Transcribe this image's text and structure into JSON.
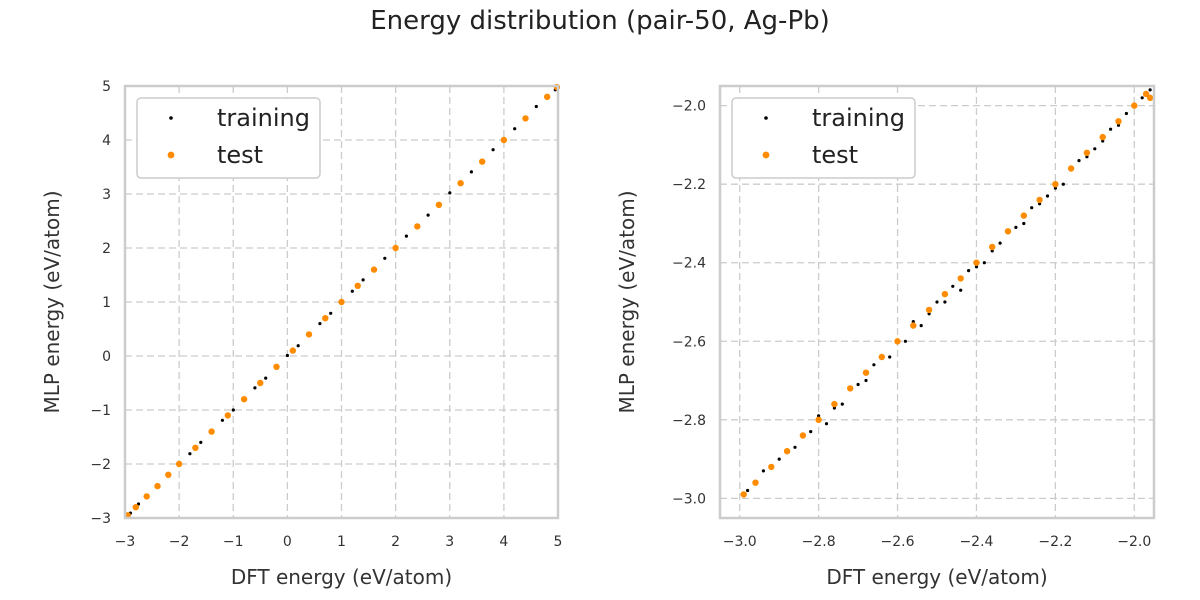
{
  "figure": {
    "title": "Energy distribution (pair-50, Ag-Pb)"
  },
  "colors": {
    "training": "#000000",
    "test": "#ff8c00",
    "grid": "#cccccc",
    "frame": "#cccccc"
  },
  "chart_data": [
    {
      "type": "scatter",
      "title": "",
      "xlabel": "DFT energy (eV/atom)",
      "ylabel": "MLP energy (eV/atom)",
      "xlim": [
        -3,
        5
      ],
      "ylim": [
        -3,
        5
      ],
      "xticks": [
        -3,
        -2,
        -1,
        0,
        1,
        2,
        3,
        4,
        5
      ],
      "yticks": [
        -3,
        -2,
        -1,
        0,
        1,
        2,
        3,
        4,
        5
      ],
      "xtick_labels": [
        "−3",
        "−2",
        "−1",
        "0",
        "1",
        "2",
        "3",
        "4",
        "5"
      ],
      "ytick_labels": [
        "−3",
        "−2",
        "−1",
        "0",
        "1",
        "2",
        "3",
        "4",
        "5"
      ],
      "grid": true,
      "legend": {
        "placement": "top-left",
        "entries": [
          "training",
          "test"
        ]
      },
      "series": [
        {
          "name": "training",
          "color": "#000000",
          "points": [
            [
              -2.98,
              -2.97
            ],
            [
              -2.9,
              -2.91
            ],
            [
              -2.75,
              -2.74
            ],
            [
              -2.6,
              -2.62
            ],
            [
              -2.4,
              -2.39
            ],
            [
              -2.2,
              -2.21
            ],
            [
              -2.0,
              -1.99
            ],
            [
              -1.8,
              -1.81
            ],
            [
              -1.6,
              -1.6
            ],
            [
              -1.4,
              -1.41
            ],
            [
              -1.2,
              -1.19
            ],
            [
              -1.0,
              -1.0
            ],
            [
              -0.8,
              -0.81
            ],
            [
              -0.6,
              -0.59
            ],
            [
              -0.4,
              -0.41
            ],
            [
              -0.2,
              -0.2
            ],
            [
              0.0,
              0.01
            ],
            [
              0.2,
              0.19
            ],
            [
              0.4,
              0.41
            ],
            [
              0.6,
              0.6
            ],
            [
              0.8,
              0.79
            ],
            [
              1.0,
              1.01
            ],
            [
              1.2,
              1.2
            ],
            [
              1.4,
              1.41
            ],
            [
              1.6,
              1.59
            ],
            [
              1.8,
              1.81
            ],
            [
              2.0,
              2.0
            ],
            [
              2.2,
              2.22
            ],
            [
              2.4,
              2.38
            ],
            [
              2.6,
              2.61
            ],
            [
              2.8,
              2.79
            ],
            [
              3.0,
              3.02
            ],
            [
              3.2,
              3.18
            ],
            [
              3.4,
              3.41
            ],
            [
              3.6,
              3.59
            ],
            [
              3.8,
              3.82
            ],
            [
              4.0,
              3.98
            ],
            [
              4.2,
              4.21
            ],
            [
              4.4,
              4.39
            ],
            [
              4.6,
              4.62
            ],
            [
              4.8,
              4.78
            ],
            [
              4.95,
              4.93
            ]
          ]
        },
        {
          "name": "test",
          "color": "#ff8c00",
          "points": [
            [
              -2.95,
              -2.95
            ],
            [
              -2.8,
              -2.8
            ],
            [
              -2.6,
              -2.6
            ],
            [
              -2.4,
              -2.41
            ],
            [
              -2.2,
              -2.2
            ],
            [
              -2.0,
              -2.0
            ],
            [
              -1.7,
              -1.7
            ],
            [
              -1.4,
              -1.4
            ],
            [
              -1.1,
              -1.1
            ],
            [
              -0.8,
              -0.8
            ],
            [
              -0.5,
              -0.5
            ],
            [
              -0.2,
              -0.2
            ],
            [
              0.1,
              0.1
            ],
            [
              0.4,
              0.4
            ],
            [
              0.7,
              0.7
            ],
            [
              1.0,
              1.0
            ],
            [
              1.3,
              1.3
            ],
            [
              1.6,
              1.6
            ],
            [
              2.0,
              2.0
            ],
            [
              2.4,
              2.4
            ],
            [
              2.8,
              2.8
            ],
            [
              3.2,
              3.2
            ],
            [
              3.6,
              3.6
            ],
            [
              4.0,
              4.0
            ],
            [
              4.4,
              4.4
            ],
            [
              4.8,
              4.8
            ],
            [
              4.98,
              4.98
            ]
          ]
        }
      ]
    },
    {
      "type": "scatter",
      "title": "",
      "xlabel": "DFT energy (eV/atom)",
      "ylabel": "MLP energy (eV/atom)",
      "xlim": [
        -3.05,
        -1.95
      ],
      "ylim": [
        -3.05,
        -1.95
      ],
      "xticks": [
        -3.0,
        -2.8,
        -2.6,
        -2.4,
        -2.2,
        -2.0
      ],
      "yticks": [
        -3.0,
        -2.8,
        -2.6,
        -2.4,
        -2.2,
        -2.0
      ],
      "xtick_labels": [
        "−3.0",
        "−2.8",
        "−2.6",
        "−2.4",
        "−2.2",
        "−2.0"
      ],
      "ytick_labels": [
        "−3.0",
        "−2.8",
        "−2.6",
        "−2.4",
        "−2.2",
        "−2.0"
      ],
      "grid": true,
      "legend": {
        "placement": "top-left",
        "entries": [
          "training",
          "test"
        ]
      },
      "series": [
        {
          "name": "training",
          "color": "#000000",
          "points": [
            [
              -2.98,
              -2.98
            ],
            [
              -2.94,
              -2.93
            ],
            [
              -2.9,
              -2.9
            ],
            [
              -2.86,
              -2.87
            ],
            [
              -2.82,
              -2.83
            ],
            [
              -2.8,
              -2.79
            ],
            [
              -2.78,
              -2.81
            ],
            [
              -2.76,
              -2.77
            ],
            [
              -2.74,
              -2.76
            ],
            [
              -2.72,
              -2.72
            ],
            [
              -2.7,
              -2.71
            ],
            [
              -2.68,
              -2.7
            ],
            [
              -2.66,
              -2.66
            ],
            [
              -2.64,
              -2.64
            ],
            [
              -2.62,
              -2.64
            ],
            [
              -2.6,
              -2.6
            ],
            [
              -2.58,
              -2.6
            ],
            [
              -2.56,
              -2.55
            ],
            [
              -2.54,
              -2.56
            ],
            [
              -2.52,
              -2.53
            ],
            [
              -2.5,
              -2.5
            ],
            [
              -2.48,
              -2.5
            ],
            [
              -2.46,
              -2.46
            ],
            [
              -2.44,
              -2.47
            ],
            [
              -2.42,
              -2.42
            ],
            [
              -2.4,
              -2.41
            ],
            [
              -2.38,
              -2.4
            ],
            [
              -2.36,
              -2.37
            ],
            [
              -2.34,
              -2.35
            ],
            [
              -2.32,
              -2.32
            ],
            [
              -2.3,
              -2.31
            ],
            [
              -2.28,
              -2.3
            ],
            [
              -2.26,
              -2.26
            ],
            [
              -2.24,
              -2.25
            ],
            [
              -2.22,
              -2.23
            ],
            [
              -2.2,
              -2.21
            ],
            [
              -2.18,
              -2.2
            ],
            [
              -2.16,
              -2.16
            ],
            [
              -2.14,
              -2.14
            ],
            [
              -2.12,
              -2.13
            ],
            [
              -2.1,
              -2.11
            ],
            [
              -2.08,
              -2.09
            ],
            [
              -2.06,
              -2.06
            ],
            [
              -2.04,
              -2.05
            ],
            [
              -2.02,
              -2.02
            ],
            [
              -2.0,
              -2.0
            ],
            [
              -1.98,
              -1.98
            ],
            [
              -1.96,
              -1.96
            ]
          ]
        },
        {
          "name": "test",
          "color": "#ff8c00",
          "points": [
            [
              -2.99,
              -2.99
            ],
            [
              -2.96,
              -2.96
            ],
            [
              -2.92,
              -2.92
            ],
            [
              -2.88,
              -2.88
            ],
            [
              -2.84,
              -2.84
            ],
            [
              -2.8,
              -2.8
            ],
            [
              -2.76,
              -2.76
            ],
            [
              -2.72,
              -2.72
            ],
            [
              -2.68,
              -2.68
            ],
            [
              -2.64,
              -2.64
            ],
            [
              -2.6,
              -2.6
            ],
            [
              -2.56,
              -2.56
            ],
            [
              -2.52,
              -2.52
            ],
            [
              -2.48,
              -2.48
            ],
            [
              -2.44,
              -2.44
            ],
            [
              -2.4,
              -2.4
            ],
            [
              -2.36,
              -2.36
            ],
            [
              -2.32,
              -2.32
            ],
            [
              -2.28,
              -2.28
            ],
            [
              -2.24,
              -2.24
            ],
            [
              -2.2,
              -2.2
            ],
            [
              -2.16,
              -2.16
            ],
            [
              -2.12,
              -2.12
            ],
            [
              -2.08,
              -2.08
            ],
            [
              -2.04,
              -2.04
            ],
            [
              -2.0,
              -2.0
            ],
            [
              -1.97,
              -1.97
            ],
            [
              -1.96,
              -1.98
            ]
          ]
        }
      ]
    }
  ]
}
